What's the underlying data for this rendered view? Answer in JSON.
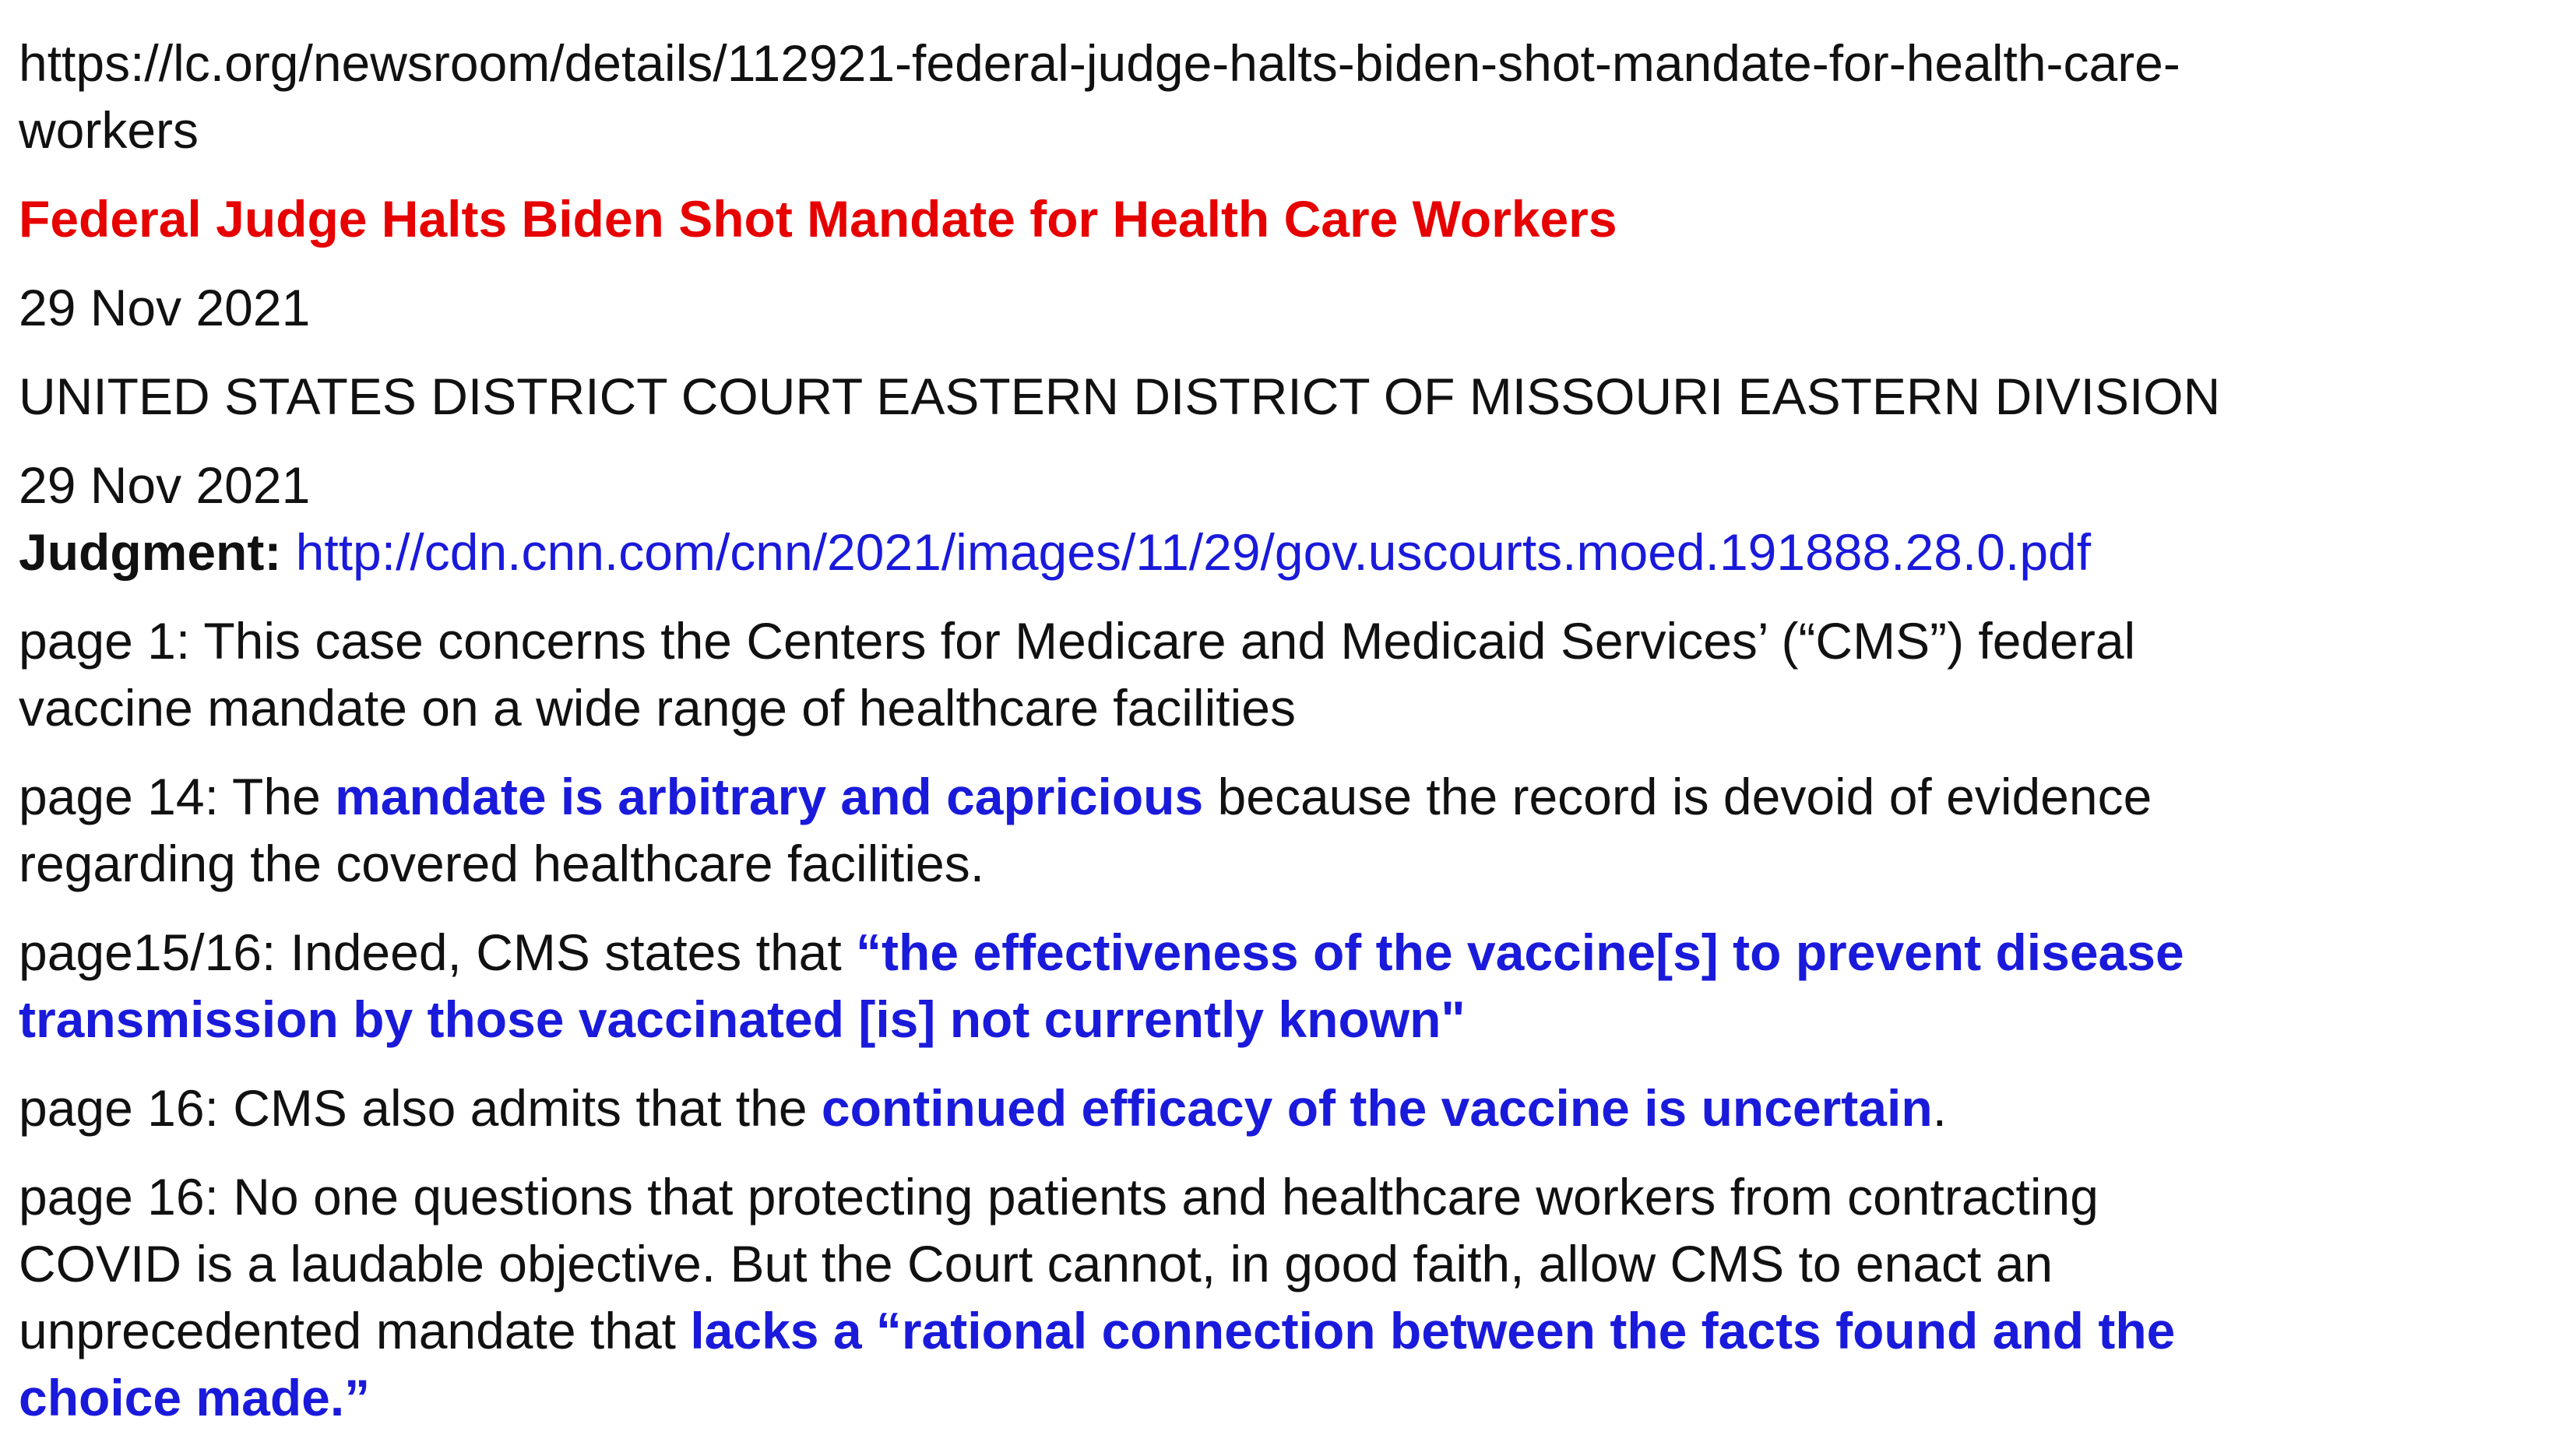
{
  "source_url": {
    "line1": "https://lc.org/newsroom/details/112921-federal-judge-halts-biden-shot-mandate-for-health-care-",
    "line2": "workers"
  },
  "headline": "Federal Judge Halts Biden Shot Mandate for Health Care Workers",
  "date_published": "29 Nov 2021",
  "court": "UNITED STATES DISTRICT COURT EASTERN DISTRICT OF MISSOURI EASTERN DIVISION",
  "judgment_date": "29 Nov 2021",
  "judgment": {
    "label": "Judgment:",
    "link": "http://cdn.cnn.com/cnn/2021/images/11/29/gov.uscourts.moed.191888.28.0.pdf"
  },
  "excerpts": [
    {
      "line1": "page 1: This case concerns the Centers for Medicare and Medicaid Services’ (“CMS”) federal",
      "line2": "vaccine mandate on a wide range of healthcare facilities"
    },
    {
      "prefix": "page 14: The ",
      "highlight": "mandate is arbitrary and capricious",
      "suffix": " because the record is devoid of evidence",
      "line2": "regarding the covered healthcare facilities."
    },
    {
      "prefix": "page15/16: Indeed, CMS states that ",
      "highlight1": "“the effectiveness of the vaccine[s] to prevent disease",
      "highlight2": "transmission by those vaccinated [is] not currently known\""
    },
    {
      "prefix": "page 16: CMS also admits that the ",
      "highlight": "continued efficacy of the vaccine is uncertain",
      "suffix": "."
    },
    {
      "line1": "page 16: No one questions that protecting patients and healthcare workers from contracting",
      "line2": "COVID is a laudable objective. But the Court cannot, in good faith, allow CMS to enact an",
      "line3_prefix": "unprecedented mandate that ",
      "line3_highlight": "lacks a “rational connection between the facts found and the",
      "line4_highlight": "choice made.”"
    }
  ],
  "colors": {
    "headline": "#e60000",
    "highlight": "#1a1adb",
    "link": "#1a1adb",
    "text": "#111111"
  }
}
